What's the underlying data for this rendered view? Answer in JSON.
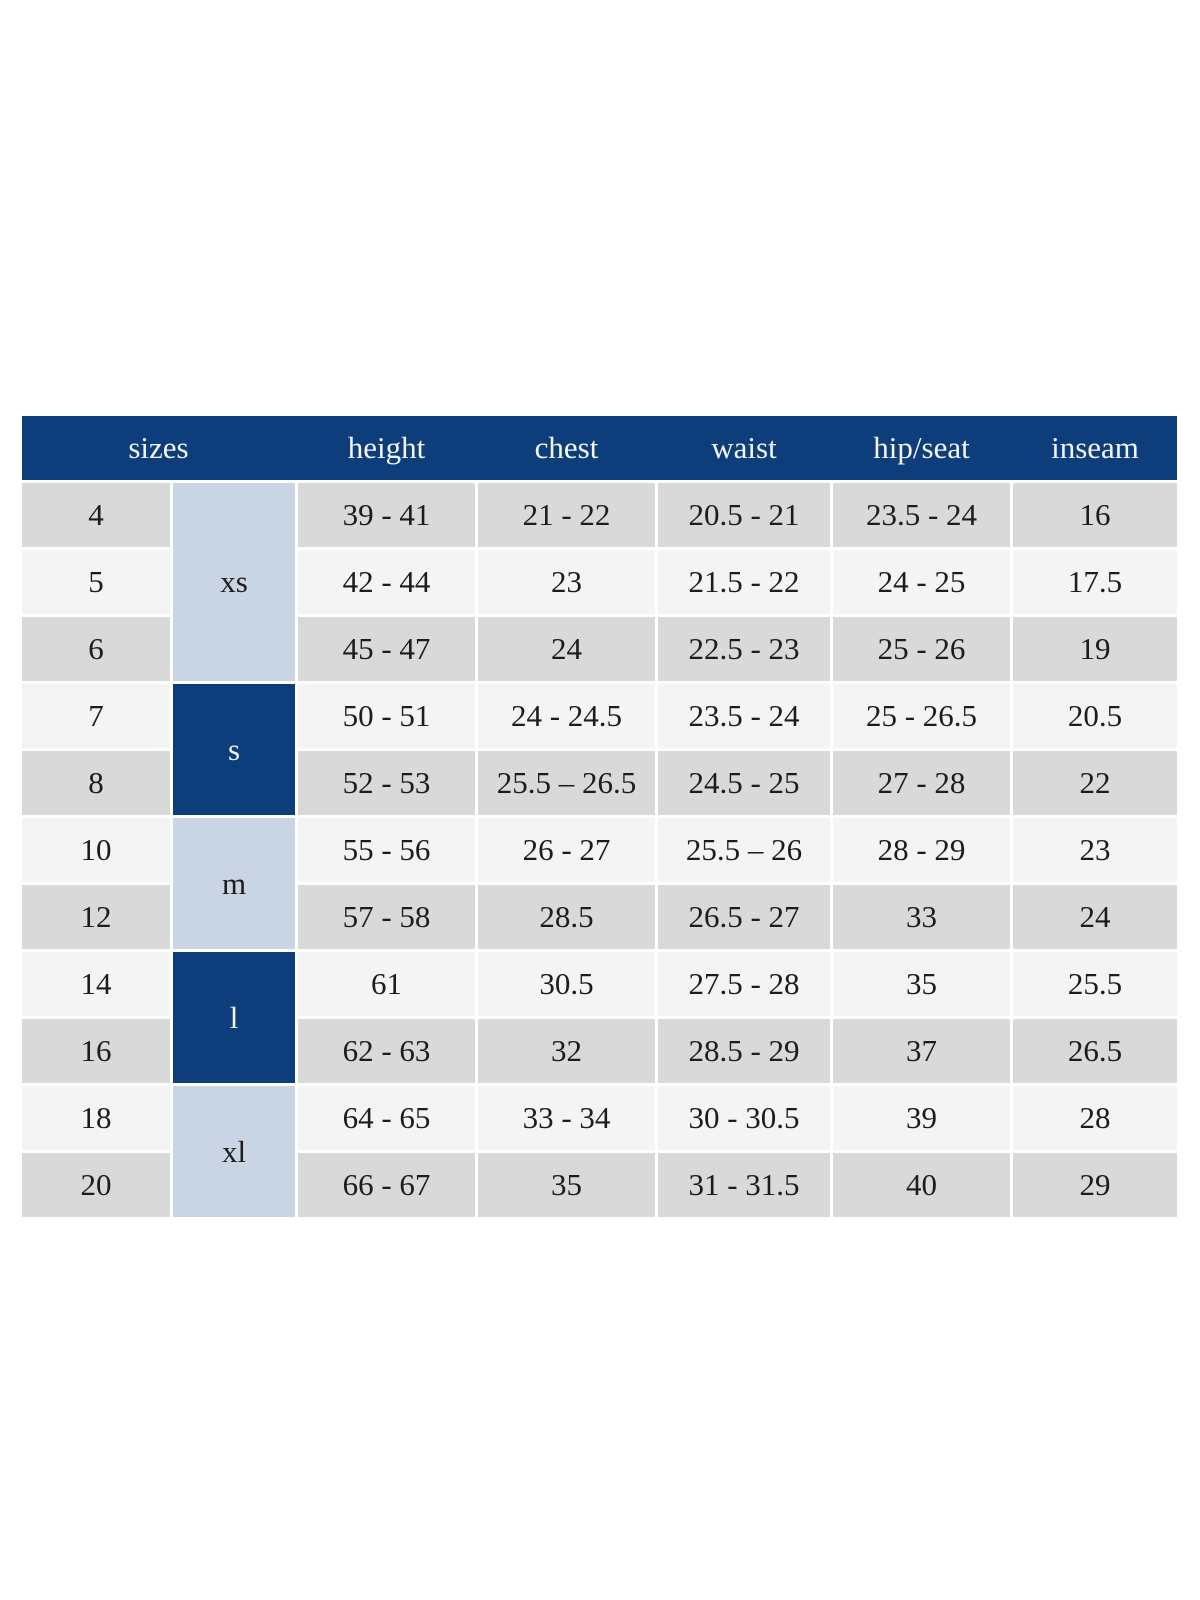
{
  "colors": {
    "page_bg": "#ffffff",
    "header_bg": "#0d3e7b",
    "header_text": "#f4f6f9",
    "body_text": "#1c1c1c",
    "row_gray": "#d9d9d9",
    "row_light": "#f4f4f4",
    "group_light_bg": "#c9d5e4",
    "group_dark_bg": "#0d3e7b"
  },
  "chart_data": {
    "type": "table",
    "columns": [
      "sizes",
      "height",
      "chest",
      "waist",
      "hip/seat",
      "inseam"
    ],
    "groups": [
      {
        "label": "xs",
        "span": 3
      },
      {
        "label": "s",
        "span": 2
      },
      {
        "label": "m",
        "span": 2
      },
      {
        "label": "l",
        "span": 2
      },
      {
        "label": "xl",
        "span": 2
      }
    ],
    "rows": [
      {
        "size": "4",
        "height": "39 - 41",
        "chest": "21 - 22",
        "waist": "20.5 - 21",
        "hip_seat": "23.5 - 24",
        "inseam": "16"
      },
      {
        "size": "5",
        "height": "42 - 44",
        "chest": "23",
        "waist": "21.5 - 22",
        "hip_seat": "24 - 25",
        "inseam": "17.5"
      },
      {
        "size": "6",
        "height": "45 - 47",
        "chest": "24",
        "waist": "22.5 - 23",
        "hip_seat": "25 - 26",
        "inseam": "19"
      },
      {
        "size": "7",
        "height": "50 - 51",
        "chest": "24 - 24.5",
        "waist": "23.5 - 24",
        "hip_seat": "25 - 26.5",
        "inseam": "20.5"
      },
      {
        "size": "8",
        "height": "52 - 53",
        "chest": "25.5 – 26.5",
        "waist": "24.5 - 25",
        "hip_seat": "27 - 28",
        "inseam": "22"
      },
      {
        "size": "10",
        "height": "55 - 56",
        "chest": "26 - 27",
        "waist": "25.5 – 26",
        "hip_seat": "28 - 29",
        "inseam": "23"
      },
      {
        "size": "12",
        "height": "57 - 58",
        "chest": "28.5",
        "waist": "26.5 - 27",
        "hip_seat": "33",
        "inseam": "24"
      },
      {
        "size": "14",
        "height": "61",
        "chest": "30.5",
        "waist": "27.5 - 28",
        "hip_seat": "35",
        "inseam": "25.5"
      },
      {
        "size": "16",
        "height": "62 - 63",
        "chest": "32",
        "waist": "28.5 - 29",
        "hip_seat": "37",
        "inseam": "26.5"
      },
      {
        "size": "18",
        "height": "64 - 65",
        "chest": "33 - 34",
        "waist": "30 - 30.5",
        "hip_seat": "39",
        "inseam": "28"
      },
      {
        "size": "20",
        "height": "66 - 67",
        "chest": "35",
        "waist": "31 - 31.5",
        "hip_seat": "40",
        "inseam": "29"
      }
    ]
  }
}
